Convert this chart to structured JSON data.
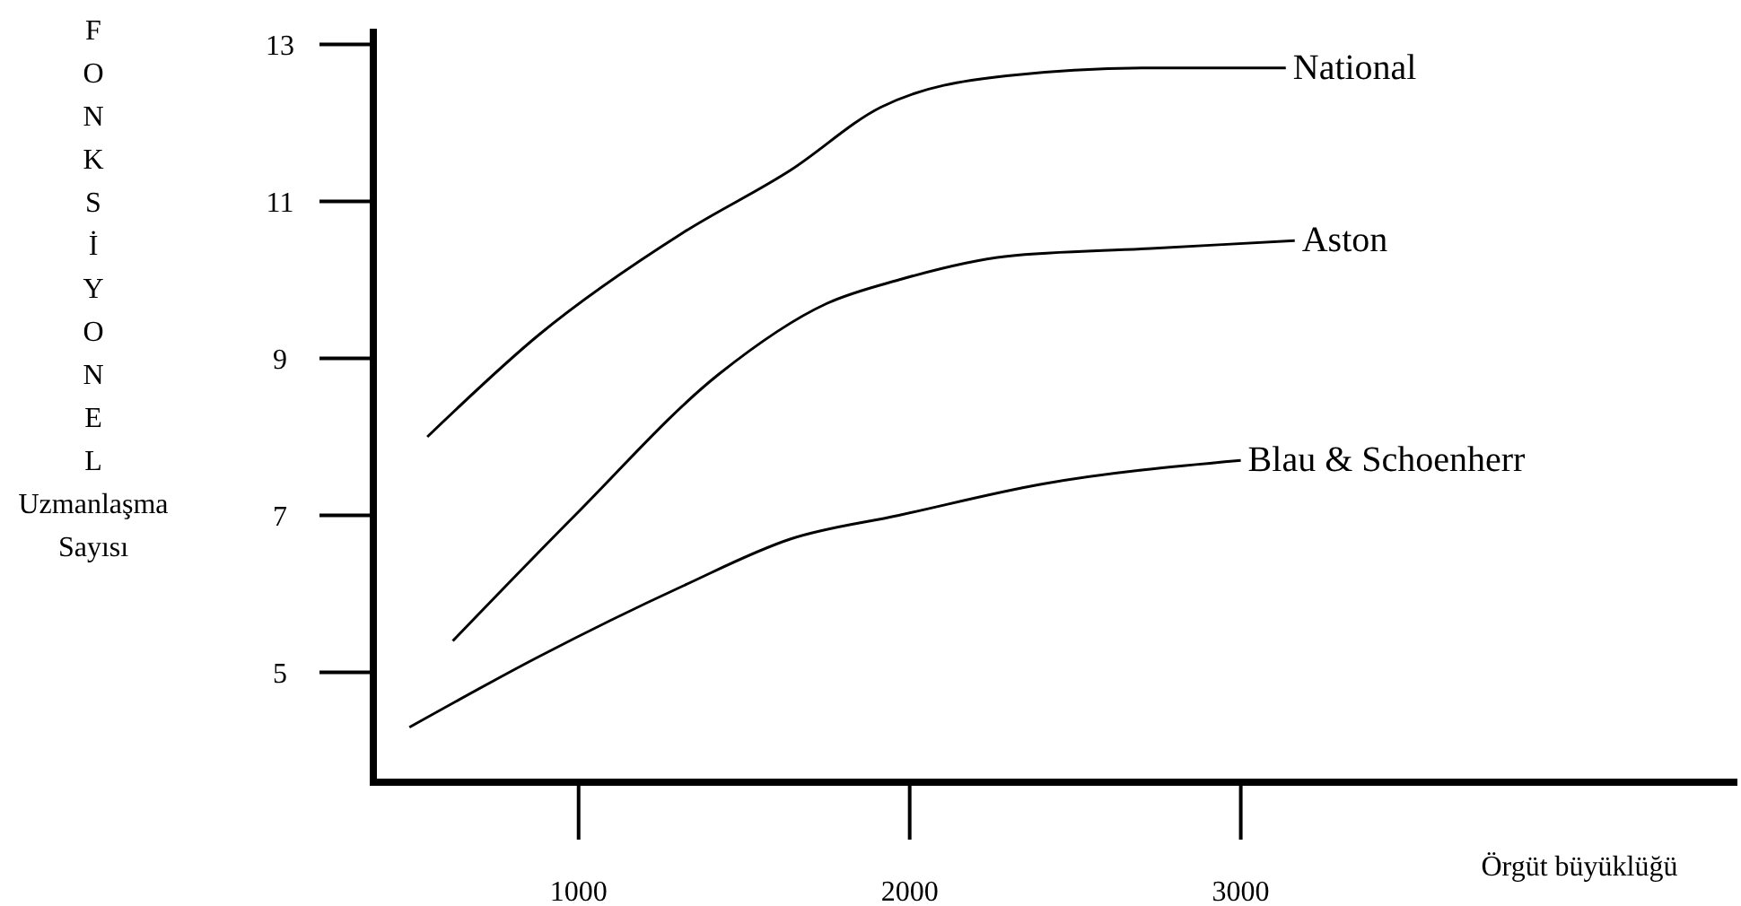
{
  "chart_data": {
    "type": "line",
    "xlabel": "Örgüt büyüklüğü",
    "ylabel": "FONKSİYONEL Uzmanlaşma Sayısı",
    "xlim": [
      380,
      4500
    ],
    "ylim": [
      3.6,
      13.2
    ],
    "xticks": [
      1000,
      2000,
      3000
    ],
    "yticks": [
      5,
      7,
      9,
      11,
      13
    ],
    "series": [
      {
        "name": "National",
        "color": "#000000",
        "x": [
          543,
          880,
          1315,
          1641,
          1913,
          2293,
          2728,
          3136
        ],
        "values": [
          8.0,
          9.3,
          10.6,
          11.4,
          12.2,
          12.6,
          12.7,
          12.7
        ]
      },
      {
        "name": "Aston",
        "color": "#000000",
        "x": [
          620,
          989,
          1424,
          1750,
          1967,
          2293,
          2728,
          3163
        ],
        "values": [
          5.4,
          7.0,
          8.8,
          9.7,
          10.0,
          10.3,
          10.4,
          10.5
        ]
      },
      {
        "name": "Blau & Schoenherr",
        "color": "#000000",
        "x": [
          489,
          880,
          1315,
          1641,
          1967,
          2402,
          3000
        ],
        "values": [
          4.3,
          5.2,
          6.1,
          6.7,
          7.0,
          7.4,
          7.7
        ]
      }
    ],
    "grid": false,
    "marker": "none",
    "line_style": "solid"
  }
}
